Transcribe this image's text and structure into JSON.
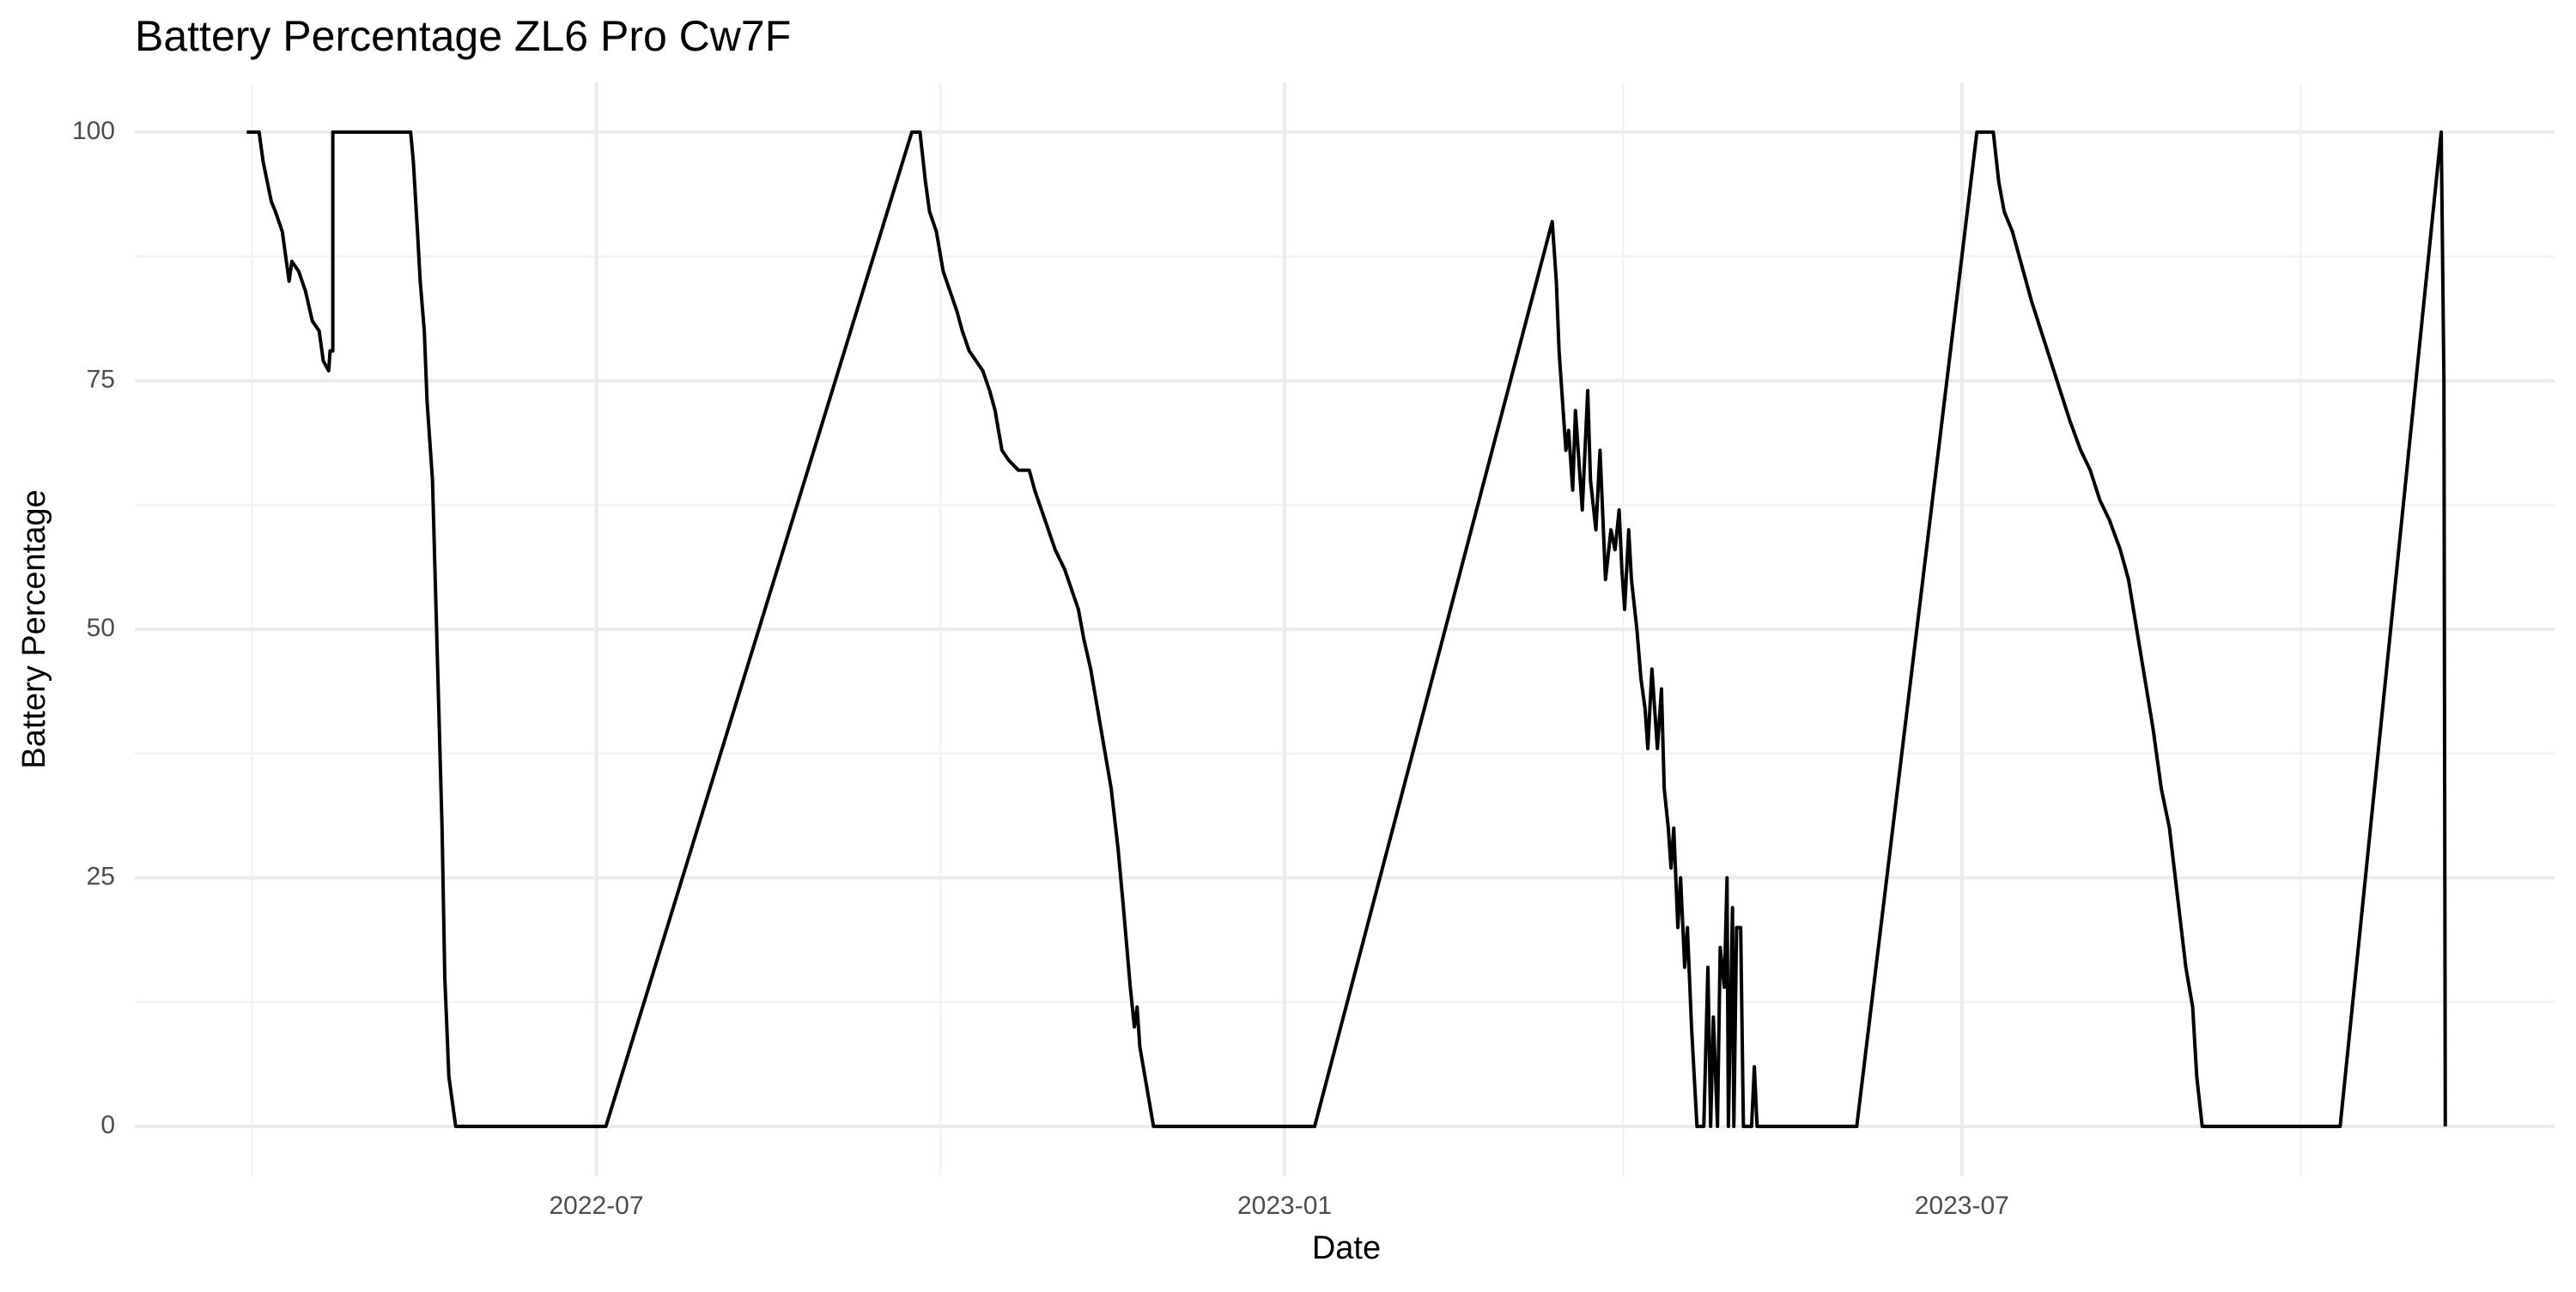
{
  "chart_data": {
    "type": "line",
    "title": "Battery Percentage ZL6 Pro Cw7F",
    "x_label": "Date",
    "y_label": "Battery Percentage",
    "color": "#000000",
    "grid": true,
    "xlim": [
      2022.158,
      2023.93
    ],
    "xticks": [
      {
        "value": 2022.496,
        "label": "2022-07"
      },
      {
        "value": 2023.0,
        "label": "2023-01"
      },
      {
        "value": 2023.496,
        "label": "2023-07"
      }
    ],
    "ylim": [
      -5,
      105
    ],
    "yticks": [
      0,
      25,
      50,
      75,
      100
    ],
    "x": [
      2022.24,
      2022.249,
      2022.252,
      2022.258,
      2022.261,
      2022.266,
      2022.271,
      2022.273,
      2022.278,
      2022.283,
      2022.288,
      2022.293,
      2022.296,
      2022.3,
      2022.301,
      2022.303,
      2022.303,
      2022.36,
      2022.362,
      2022.365,
      2022.367,
      2022.37,
      2022.372,
      2022.376,
      2022.378,
      2022.38,
      2022.383,
      2022.385,
      2022.388,
      2022.393,
      2022.503,
      2022.727,
      2022.733,
      2022.737,
      2022.74,
      2022.745,
      2022.75,
      2022.755,
      2022.76,
      2022.764,
      2022.769,
      2022.774,
      2022.779,
      2022.784,
      2022.788,
      2022.793,
      2022.798,
      2022.805,
      2022.813,
      2022.817,
      2022.822,
      2022.827,
      2022.832,
      2022.839,
      2022.844,
      2022.849,
      2022.853,
      2022.858,
      2022.863,
      2022.868,
      2022.873,
      2022.878,
      2022.882,
      2022.887,
      2022.89,
      2022.892,
      2022.894,
      2022.899,
      2022.904,
      2023.022,
      2023.196,
      2023.199,
      2023.201,
      2023.204,
      2023.206,
      2023.208,
      2023.211,
      2023.213,
      2023.216,
      2023.218,
      2023.222,
      2023.224,
      2023.228,
      2023.231,
      2023.235,
      2023.239,
      2023.242,
      2023.245,
      2023.247,
      2023.249,
      2023.252,
      2023.254,
      2023.258,
      2023.261,
      2023.264,
      2023.266,
      2023.269,
      2023.271,
      2023.273,
      2023.276,
      2023.278,
      2023.281,
      2023.283,
      2023.285,
      2023.288,
      2023.29,
      2023.293,
      2023.295,
      2023.298,
      2023.3,
      2023.302,
      2023.307,
      2023.31,
      2023.312,
      2023.314,
      2023.317,
      2023.319,
      2023.322,
      2023.324,
      2023.325,
      2023.328,
      2023.329,
      2023.331,
      2023.334,
      2023.336,
      2023.342,
      2023.344,
      2023.346,
      2023.419,
      2023.507,
      2023.519,
      2023.523,
      2023.527,
      2023.533,
      2023.539,
      2023.547,
      2023.554,
      2023.561,
      2023.568,
      2023.575,
      2023.583,
      2023.59,
      2023.597,
      2023.604,
      2023.612,
      2023.618,
      2023.624,
      2023.63,
      2023.636,
      2023.642,
      2023.648,
      2023.654,
      2023.66,
      2023.665,
      2023.668,
      2023.672,
      2023.773,
      2023.847,
      2023.849,
      2023.85
    ],
    "values": [
      100,
      100,
      97,
      93,
      92,
      90,
      85,
      87,
      86,
      84,
      81,
      80,
      77,
      76,
      78,
      78,
      100,
      100,
      97,
      90,
      85,
      80,
      73,
      65,
      55,
      45,
      30,
      15,
      5,
      0,
      0,
      100,
      100,
      95,
      92,
      90,
      86,
      84,
      82,
      80,
      78,
      77,
      76,
      74,
      72,
      68,
      67,
      66,
      66,
      64,
      62,
      60,
      58,
      56,
      54,
      52,
      49,
      46,
      42,
      38,
      34,
      28,
      22,
      14,
      10,
      12,
      8,
      4,
      0,
      0,
      91,
      85,
      78,
      72,
      68,
      70,
      64,
      72,
      66,
      62,
      74,
      65,
      60,
      68,
      55,
      60,
      58,
      62,
      56,
      52,
      60,
      55,
      50,
      45,
      42,
      38,
      46,
      42,
      38,
      44,
      34,
      30,
      26,
      30,
      20,
      25,
      16,
      20,
      10,
      5,
      0,
      0,
      16,
      0,
      11,
      0,
      18,
      14,
      25,
      0,
      22,
      0,
      20,
      20,
      0,
      0,
      6,
      0,
      0,
      100,
      100,
      95,
      92,
      90,
      87,
      83,
      80,
      77,
      74,
      71,
      68,
      66,
      63,
      61,
      58,
      55,
      50,
      45,
      40,
      34,
      30,
      23,
      16,
      12,
      5,
      0,
      0,
      100,
      75,
      0
    ]
  }
}
